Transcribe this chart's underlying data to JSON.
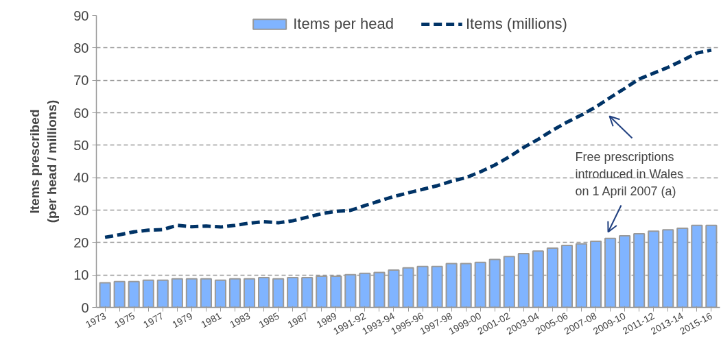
{
  "chart_data": {
    "type": "bar",
    "ylabel": "Items prescribed\n(per head / millions)",
    "categories": [
      "1973",
      null,
      "1975",
      null,
      "1977",
      null,
      "1979",
      null,
      "1981",
      null,
      "1983",
      null,
      "1985",
      null,
      "1987",
      null,
      "1989",
      null,
      "1991-92",
      null,
      "1993-94",
      null,
      "1995-96",
      null,
      "1997-98",
      null,
      "1999-00",
      null,
      "2001-02",
      null,
      "2003-04",
      null,
      "2005-06",
      null,
      "2007-08",
      null,
      "2009-10",
      null,
      "2011-12",
      null,
      "2013-14",
      null,
      "2015-16"
    ],
    "series": [
      {
        "name": "Items per head",
        "color": "#80b4ff",
        "values": [
          7.6,
          8.0,
          8.0,
          8.4,
          8.4,
          8.8,
          8.8,
          8.8,
          8.4,
          8.8,
          8.8,
          9.2,
          8.8,
          9.2,
          9.2,
          9.6,
          9.6,
          10.1,
          10.5,
          10.8,
          11.5,
          12.2,
          12.6,
          12.6,
          13.5,
          13.5,
          13.9,
          14.8,
          15.7,
          16.6,
          17.4,
          18.3,
          19.1,
          19.6,
          20.4,
          21.3,
          22.1,
          22.7,
          23.5,
          23.9,
          24.4,
          25.3,
          25.3
        ]
      },
      {
        "name": "Items (millions)",
        "type": "line",
        "line_style": "dashed",
        "color": "#003366",
        "values": [
          21.6,
          22.4,
          23.3,
          23.8,
          24.0,
          25.3,
          24.9,
          25.1,
          24.8,
          25.3,
          26.0,
          26.4,
          26.1,
          26.7,
          27.8,
          28.9,
          29.6,
          29.9,
          31.4,
          32.8,
          34.2,
          35.3,
          36.4,
          37.5,
          38.9,
          40.0,
          41.8,
          43.9,
          46.4,
          49.3,
          51.8,
          54.6,
          57.1,
          59.3,
          61.8,
          64.7,
          67.5,
          70.4,
          72.2,
          74.0,
          76.1,
          78.4,
          79.3
        ]
      }
    ],
    "ylim": [
      0,
      90
    ],
    "yticks": [
      0,
      10,
      20,
      30,
      40,
      50,
      60,
      70,
      80,
      90
    ],
    "grid": "y",
    "legend": "top",
    "annotations": [
      "Free prescriptions\nintroduced in Wales\non 1 April 2007 (a)"
    ]
  }
}
